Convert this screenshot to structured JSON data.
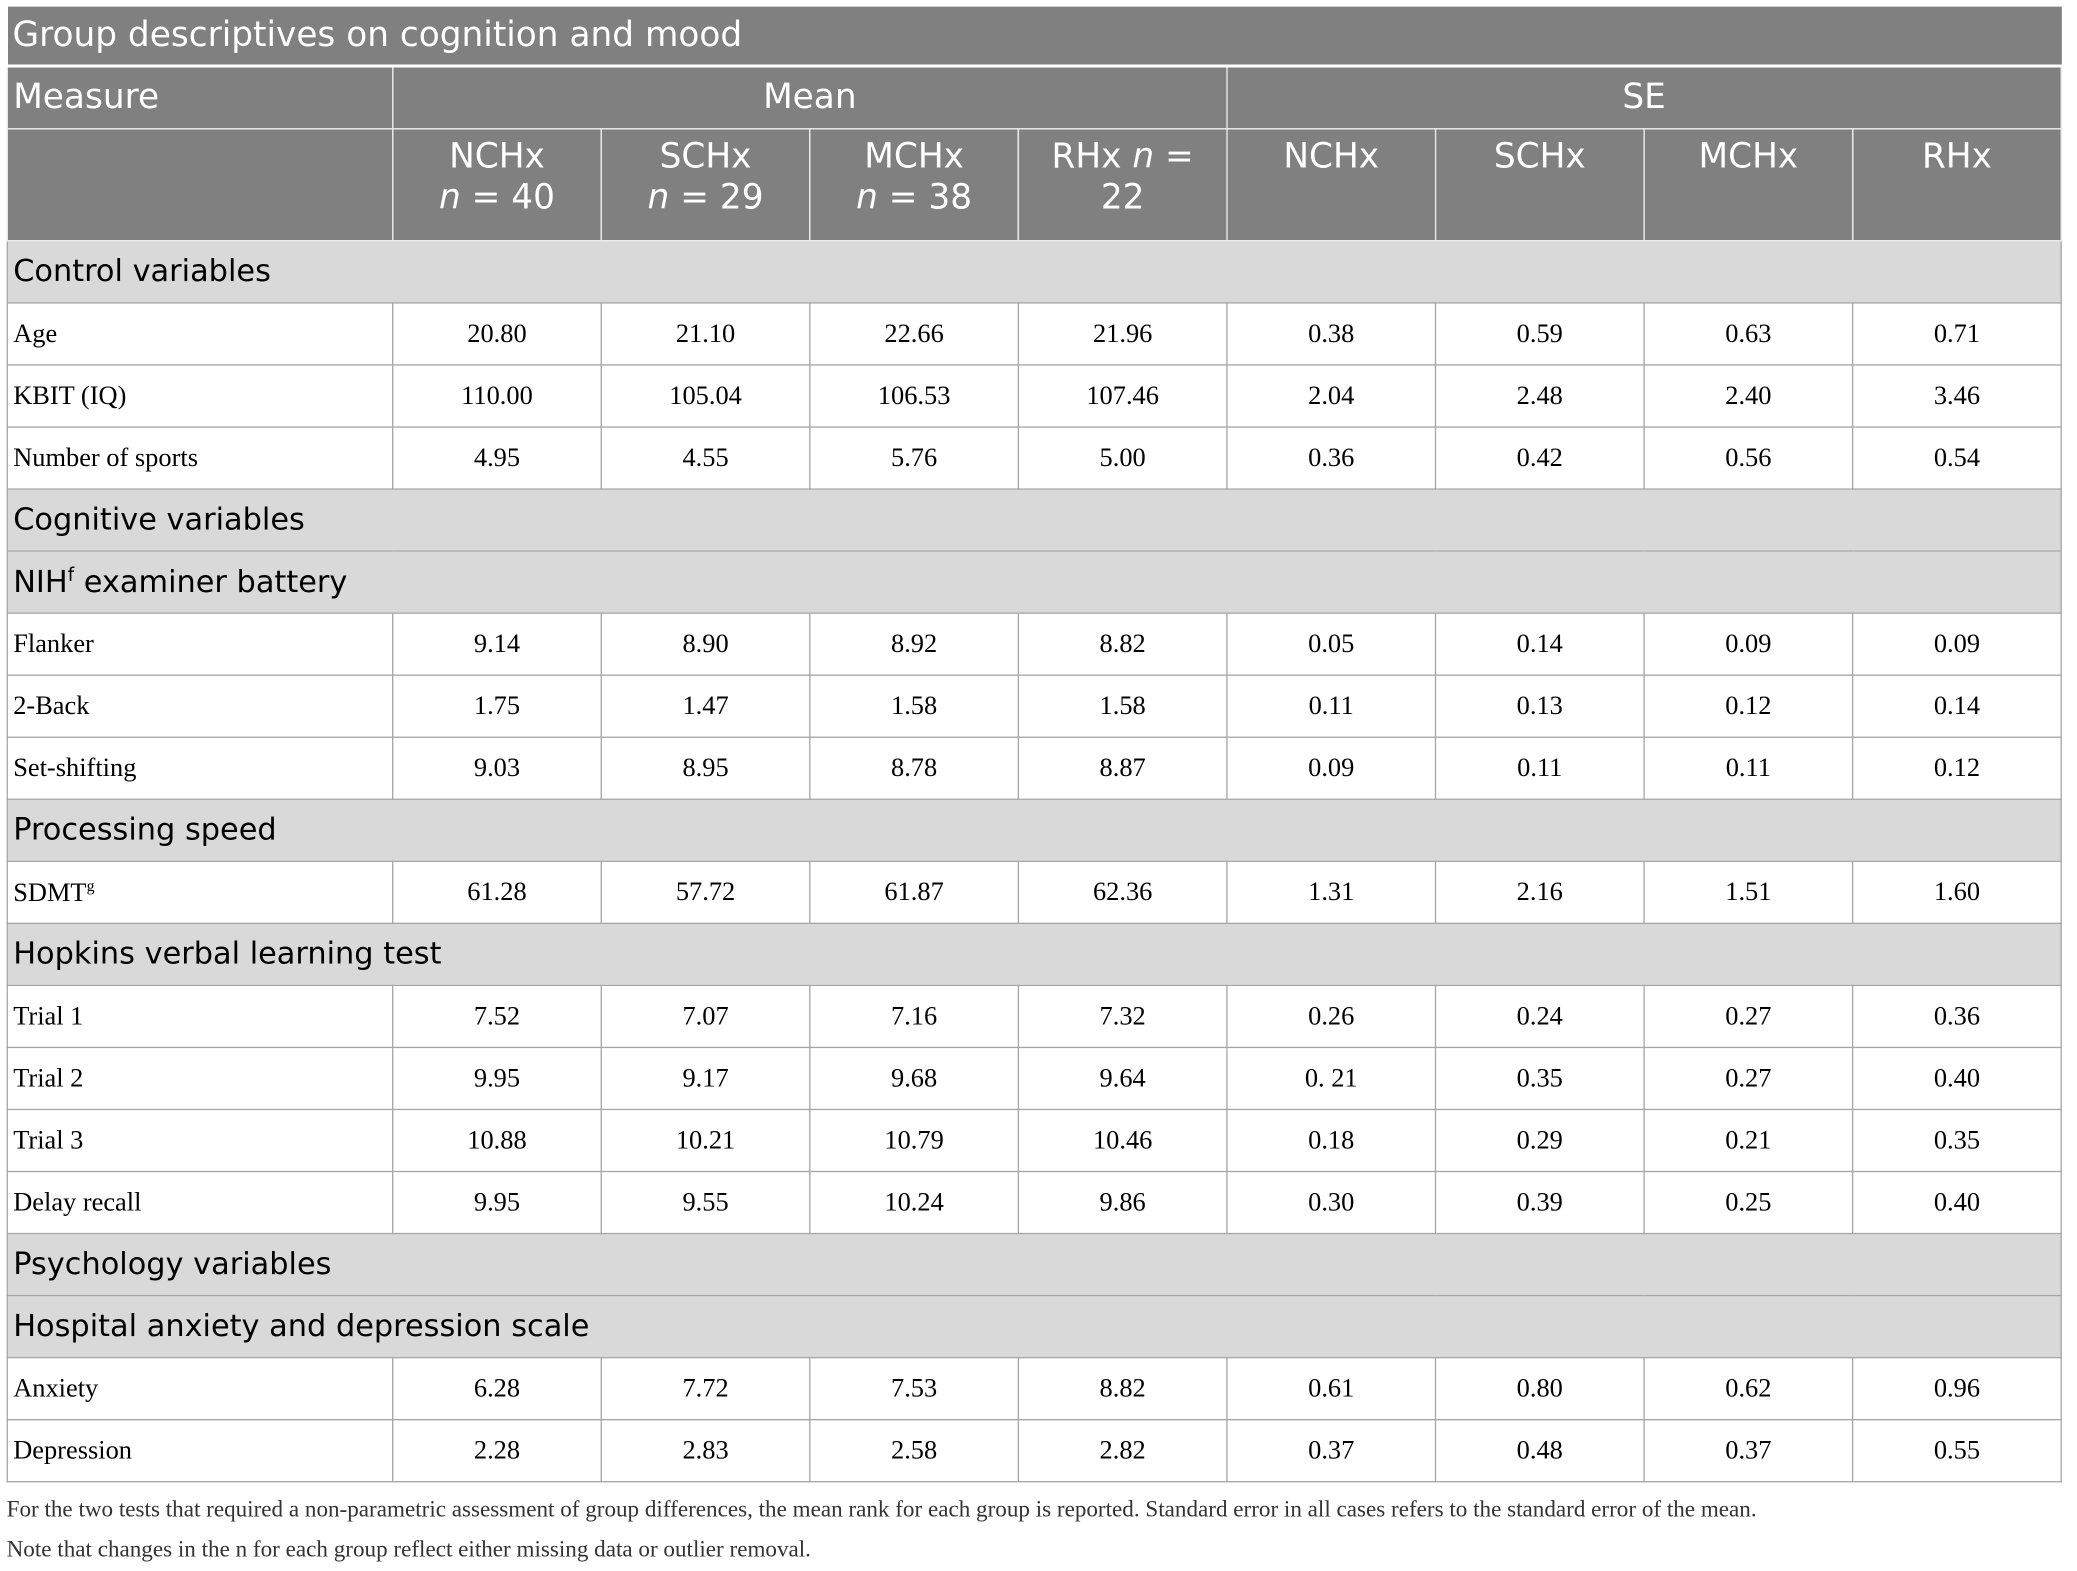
{
  "title": "Group descriptives on cognition and mood",
  "headers": {
    "measure": "Measure",
    "mean": "Mean",
    "se": "SE",
    "mean_groups": [
      {
        "name": "NCHx",
        "n": "n",
        "count": " = 40"
      },
      {
        "name": "SCHx",
        "n": "n",
        "count": " = 29"
      },
      {
        "name": "MCHx",
        "n": "n",
        "count": " = 38"
      },
      {
        "name": "RHx ",
        "n": "n",
        "count": " = 22"
      }
    ],
    "se_groups": [
      "NCHx",
      "SCHx",
      "MCHx",
      "RHx"
    ]
  },
  "rows": [
    {
      "section": "Control variables"
    },
    {
      "label": "Age",
      "values": [
        "20.80",
        "21.10",
        "22.66",
        "21.96",
        "0.38",
        "0.59",
        "0.63",
        "0.71"
      ]
    },
    {
      "label": "KBIT (IQ)",
      "values": [
        "110.00",
        "105.04",
        "106.53",
        "107.46",
        "2.04",
        "2.48",
        "2.40",
        "3.46"
      ]
    },
    {
      "label": "Number of sports",
      "values": [
        "4.95",
        "4.55",
        "5.76",
        "5.00",
        "0.36",
        "0.42",
        "0.56",
        "0.54"
      ]
    },
    {
      "section": "Cognitive variables"
    },
    {
      "section": "NIH",
      "sup": "f",
      "after": " examiner battery"
    },
    {
      "label": "Flanker",
      "values": [
        "9.14",
        "8.90",
        "8.92",
        "8.82",
        "0.05",
        "0.14",
        "0.09",
        "0.09"
      ]
    },
    {
      "label": "2-Back",
      "values": [
        "1.75",
        "1.47",
        "1.58",
        "1.58",
        "0.11",
        "0.13",
        "0.12",
        "0.14"
      ]
    },
    {
      "label": "Set-shifting",
      "values": [
        "9.03",
        "8.95",
        "8.78",
        "8.87",
        "0.09",
        "0.11",
        "0.11",
        "0.12"
      ]
    },
    {
      "section": "Processing speed"
    },
    {
      "label": "SDMT",
      "sup": "g",
      "values": [
        "61.28",
        "57.72",
        "61.87",
        "62.36",
        "1.31",
        "2.16",
        "1.51",
        "1.60"
      ]
    },
    {
      "section": "Hopkins verbal learning test"
    },
    {
      "label": "Trial 1",
      "values": [
        "7.52",
        "7.07",
        "7.16",
        "7.32",
        "0.26",
        "0.24",
        "0.27",
        "0.36"
      ]
    },
    {
      "label": "Trial 2",
      "values": [
        "9.95",
        "9.17",
        "9.68",
        "9.64",
        "0. 21",
        "0.35",
        "0.27",
        "0.40"
      ]
    },
    {
      "label": "Trial 3",
      "values": [
        "10.88",
        "10.21",
        "10.79",
        "10.46",
        "0.18",
        "0.29",
        "0.21",
        "0.35"
      ]
    },
    {
      "label": "Delay recall",
      "values": [
        "9.95",
        "9.55",
        "10.24",
        "9.86",
        "0.30",
        "0.39",
        "0.25",
        "0.40"
      ]
    },
    {
      "section": "Psychology variables"
    },
    {
      "section": "Hospital anxiety and depression scale"
    },
    {
      "label": "Anxiety",
      "values": [
        "6.28",
        "7.72",
        "7.53",
        "8.82",
        "0.61",
        "0.80",
        "0.62",
        "0.96"
      ]
    },
    {
      "label": "Depression",
      "values": [
        "2.28",
        "2.83",
        "2.58",
        "2.82",
        "0.37",
        "0.48",
        "0.37",
        "0.55"
      ]
    }
  ],
  "footnote": [
    "For the two tests that required a non-parametric assessment of group differences, the mean rank for each group is reported. Standard error in all cases refers to the standard error of the mean.",
    "Note that changes in the n for each group reflect either missing data or outlier removal."
  ]
}
